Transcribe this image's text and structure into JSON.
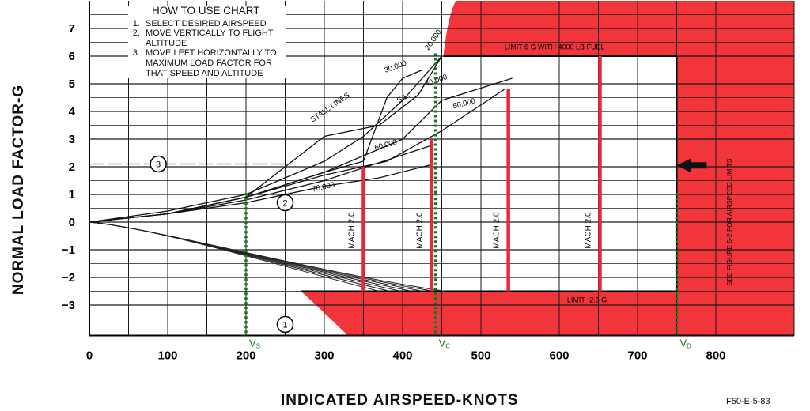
{
  "chart_data": {
    "type": "line",
    "ylabel": "NORMAL LOAD FACTOR-G",
    "xlabel": "INDICATED AIRSPEED-KNOTS",
    "xlim": [
      0,
      900
    ],
    "ylim": [
      -4,
      8
    ],
    "x_ticks": [
      "0",
      "100",
      "200",
      "300",
      "400",
      "500",
      "600",
      "700",
      "800"
    ],
    "y_ticks": [
      "7",
      "6",
      "5",
      "4",
      "3",
      "2",
      "1",
      "0",
      "-1",
      "-2",
      "-3"
    ],
    "grid": true,
    "how_to": {
      "title": "HOW TO USE CHART",
      "steps": [
        "SELECT DESIRED AIRSPEED",
        "MOVE VERTICALLY TO FLIGHT ALTITUDE",
        "MOVE LEFT HORIZONTALLY TO MAXIMUM LOAD FACTOR FOR THAT SPEED AND ALTITUDE"
      ]
    },
    "stall_lines_label": "STALL LINES",
    "curves": [
      {
        "label": "S.L.",
        "points": [
          [
            0,
            0
          ],
          [
            100,
            0.4
          ],
          [
            200,
            1.0
          ],
          [
            300,
            2.2
          ],
          [
            350,
            3.1
          ],
          [
            400,
            4.4
          ],
          [
            450,
            6.0
          ]
        ]
      },
      {
        "label": "20,000",
        "points": [
          [
            0,
            0
          ],
          [
            100,
            0.3
          ],
          [
            200,
            0.9
          ],
          [
            300,
            3.1
          ],
          [
            370,
            3.5
          ],
          [
            420,
            4.6
          ],
          [
            450,
            6.0
          ]
        ]
      },
      {
        "label": "30,000",
        "points": [
          [
            0,
            0
          ],
          [
            100,
            0.3
          ],
          [
            200,
            0.9
          ],
          [
            300,
            1.8
          ],
          [
            350,
            2.2
          ],
          [
            380,
            4.5
          ],
          [
            400,
            5.2
          ],
          [
            425,
            5.5
          ]
        ]
      },
      {
        "label": "40,000",
        "points": [
          [
            0,
            0
          ],
          [
            100,
            0.3
          ],
          [
            200,
            0.9
          ],
          [
            300,
            1.8
          ],
          [
            400,
            3.0
          ],
          [
            450,
            4.4
          ],
          [
            540,
            5.2
          ]
        ]
      },
      {
        "label": "50,000",
        "points": [
          [
            0,
            0
          ],
          [
            100,
            0.3
          ],
          [
            200,
            0.9
          ],
          [
            300,
            1.7
          ],
          [
            380,
            2.2
          ],
          [
            450,
            3.3
          ],
          [
            530,
            4.8
          ]
        ]
      },
      {
        "label": "60,000",
        "points": [
          [
            0,
            0
          ],
          [
            100,
            0.3
          ],
          [
            200,
            0.8
          ],
          [
            300,
            1.5
          ],
          [
            440,
            2.8
          ]
        ]
      },
      {
        "label": "70,000",
        "points": [
          [
            0,
            0
          ],
          [
            100,
            0.3
          ],
          [
            200,
            0.7
          ],
          [
            300,
            1.3
          ],
          [
            370,
            1.6
          ],
          [
            440,
            2.1
          ]
        ]
      }
    ],
    "limits": {
      "positive_g_text": "LIMIT 6 G WITH 4000 LB FUEL",
      "positive_g": 6,
      "negative_g_text": "LIMIT -2.5 G",
      "negative_g": -2.5,
      "side_note": "SEE FIGURE 5-2 FOR AIRSPEED LIMITS"
    },
    "mach_lines": [
      {
        "label": "MACH 2.0",
        "x": 350,
        "top": 2.0
      },
      {
        "label": "MACH 2.0",
        "x": 437,
        "top": 3.0
      },
      {
        "label": "MACH 2.0",
        "x": 535,
        "top": 4.8
      },
      {
        "label": "MACH 2.0",
        "x": 652,
        "top": 6.0
      }
    ],
    "speed_marks": [
      {
        "label": "V",
        "sub": "S",
        "x": 200
      },
      {
        "label": "V",
        "sub": "C",
        "x": 442
      },
      {
        "label": "V",
        "sub": "D",
        "x": 750
      }
    ],
    "example_path": {
      "airspeed": 250,
      "load_factor": 2.1,
      "markers": [
        "1",
        "2",
        "3"
      ]
    },
    "colors": {
      "limit_fill": "#f2353a",
      "mach": "#e8283a",
      "guide": "#12781a",
      "grid": "#1a1a1a"
    }
  },
  "figure_code": "F50-E-5-83"
}
